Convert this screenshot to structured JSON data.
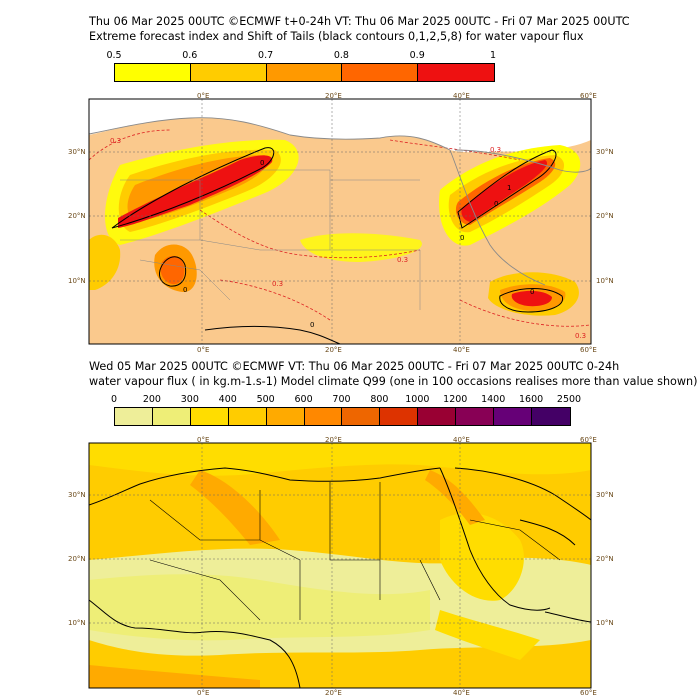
{
  "top": {
    "title_line1": "Thu 06 Mar 2025 00UTC ©ECMWF t+0-24h  VT: Thu 06 Mar 2025 00UTC - Fri 07 Mar 2025 00UTC",
    "title_line2": "Extreme forecast index and Shift of Tails (black contours 0,1,2,5,8) for water vapour flux",
    "colorbar": {
      "ticks": [
        "0.5",
        "0.6",
        "0.7",
        "0.8",
        "0.9",
        "1"
      ],
      "colors": [
        "#ffff00",
        "#ffcc00",
        "#ff9900",
        "#ff6600",
        "#ee1111"
      ]
    },
    "lon_labels": [
      "0°E",
      "20°E",
      "40°E",
      "60°E"
    ],
    "lat_labels": [
      "30°N",
      "20°N",
      "10°N"
    ],
    "contour_labels": [
      "0",
      "0",
      "1",
      "0",
      "0",
      "0",
      "0",
      "0.3",
      "0.3",
      "0.3",
      "0.3",
      "0.3"
    ]
  },
  "bottom": {
    "title_line1": "Wed 05 Mar 2025 00UTC ©ECMWF VT: Thu 06 Mar 2025 00UTC - Fri 07 Mar 2025 00UTC   0-24h",
    "title_line2": "water vapour flux ( in kg.m-1.s-1)   Model climate Q99 (one in 100 occasions realises more than value shown)",
    "colorbar": {
      "ticks": [
        "0",
        "200",
        "300",
        "400",
        "500",
        "600",
        "700",
        "800",
        "1000",
        "1200",
        "1400",
        "1600",
        "2500"
      ],
      "colors": [
        "#eeee99",
        "#eeee77",
        "#ffdd00",
        "#ffcc00",
        "#ffaa00",
        "#ff8800",
        "#ee6600",
        "#dd3300",
        "#990033",
        "#880055",
        "#660077",
        "#440066"
      ]
    },
    "lon_labels": [
      "0°E",
      "20°E",
      "40°E",
      "60°E"
    ],
    "lat_labels": [
      "30°N",
      "20°N",
      "10°N"
    ]
  }
}
